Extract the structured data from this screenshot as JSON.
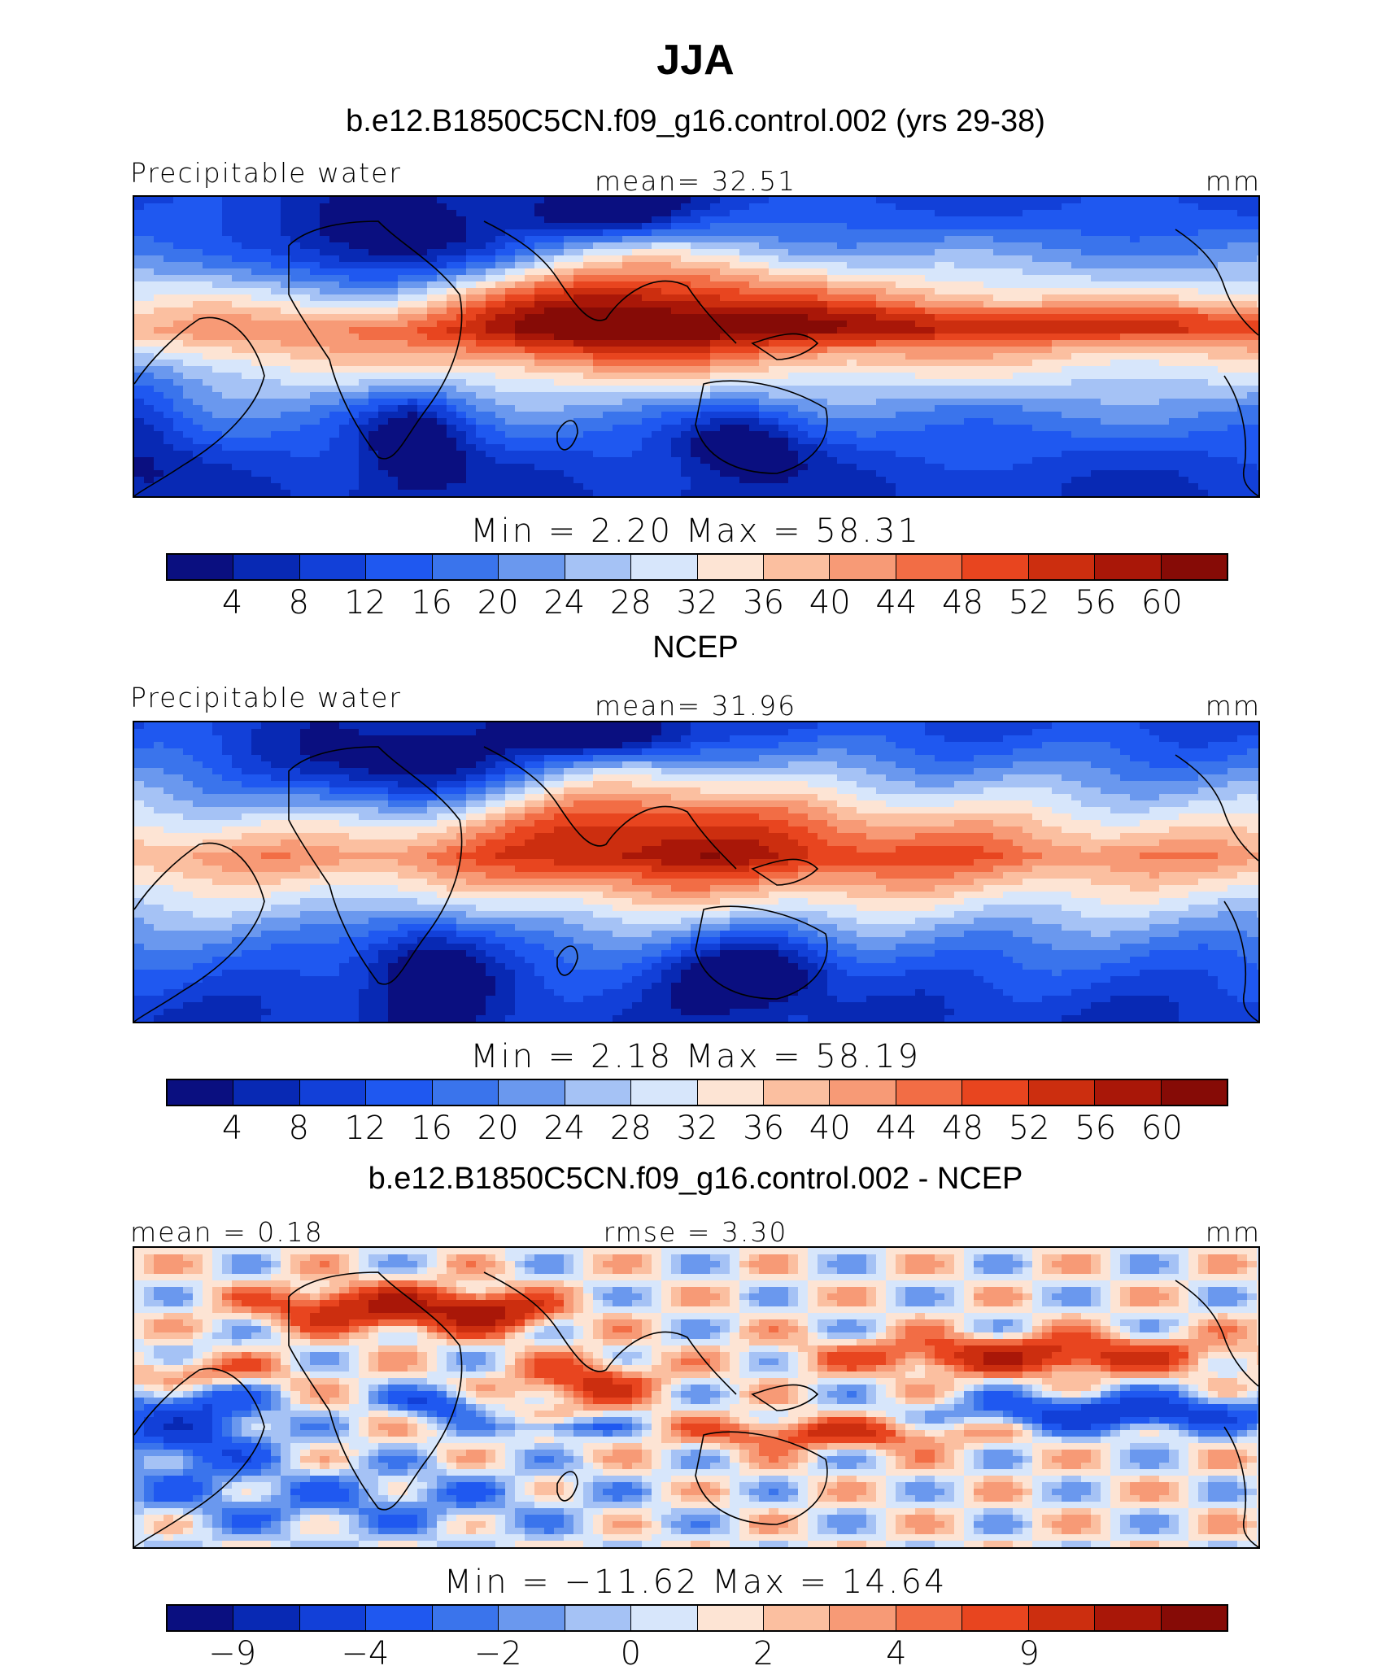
{
  "title": "JJA",
  "colors": [
    "#0a0f80",
    "#0829b4",
    "#1240d8",
    "#1f58f0",
    "#3a74ec",
    "#6a98ee",
    "#a5c2f5",
    "#d7e6fb",
    "#fde4d4",
    "#fbbfa0",
    "#f79a76",
    "#f26d45",
    "#e8451f",
    "#cc2e0f",
    "#a91708",
    "#860b06"
  ],
  "panels": [
    {
      "title": "b.e12.B1850C5CN.f09_g16.control.002 (yrs 29-38)",
      "left_label": "Precipitable  water",
      "center_label": "mean=   32.51",
      "right_label": "mm",
      "minmax": "Min  =      2.20  Max  =    58.31",
      "map_kind": "model",
      "tick_labels": [
        "4",
        "8",
        "12",
        "16",
        "20",
        "24",
        "28",
        "32",
        "36",
        "40",
        "44",
        "48",
        "52",
        "56",
        "60"
      ]
    },
    {
      "title": "NCEP",
      "left_label": "Precipitable  water",
      "center_label": "mean=   31.96",
      "right_label": "mm",
      "minmax": "Min  =      2.18  Max  =    58.19",
      "map_kind": "obs",
      "tick_labels": [
        "4",
        "8",
        "12",
        "16",
        "20",
        "24",
        "28",
        "32",
        "36",
        "40",
        "44",
        "48",
        "52",
        "56",
        "60"
      ]
    },
    {
      "title": "b.e12.B1850C5CN.f09_g16.control.002 - NCEP",
      "left_label": "mean  =     0.18",
      "center_label": "rmse  =     3.30",
      "right_label": "mm",
      "minmax": "Min  =  −11.62  Max  =    14.64",
      "map_kind": "diff",
      "tick_labels": [
        "−9",
        "",
        "−4",
        "",
        "−2",
        "",
        "0",
        "",
        "2",
        "",
        "4",
        "",
        "9",
        "",
        "",
        ""
      ]
    }
  ]
}
